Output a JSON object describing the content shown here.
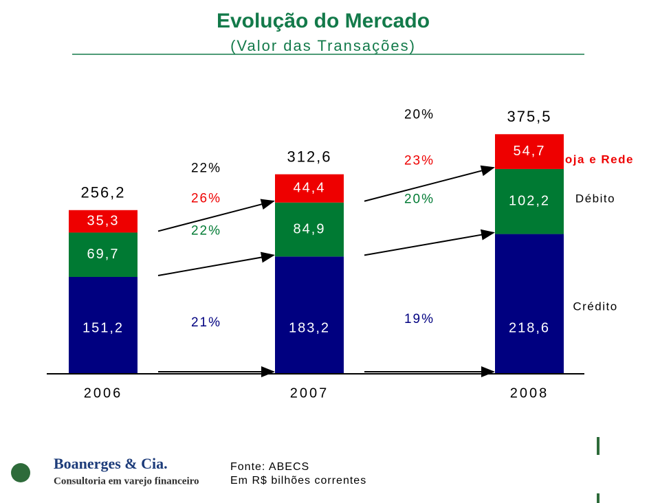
{
  "chart_data": {
    "type": "stacked-bar",
    "title": "Evolução do Mercado",
    "subtitle": "(Valor das Transações)",
    "categories": [
      "2006",
      "2007",
      "2008"
    ],
    "series": [
      {
        "name": "Crédito",
        "color": "#000080",
        "values": [
          151.2,
          183.2,
          218.6
        ],
        "value_labels": [
          "151,2",
          "183,2",
          "218,6"
        ],
        "growth": [
          21,
          19
        ],
        "growth_labels": [
          "21%",
          "19%"
        ]
      },
      {
        "name": "Débito",
        "color": "#007a33",
        "values": [
          69.7,
          84.9,
          102.2
        ],
        "value_labels": [
          "69,7",
          "84,9",
          "102,2"
        ],
        "growth": [
          22,
          20
        ],
        "growth_labels": [
          "22%",
          "20%"
        ]
      },
      {
        "name": "Loja e Rede",
        "color": "#ee0000",
        "values": [
          35.3,
          44.4,
          54.7
        ],
        "value_labels": [
          "35,3",
          "44,4",
          "54,7"
        ],
        "growth": [
          26,
          23
        ],
        "growth_labels": [
          "26%",
          "23%"
        ]
      }
    ],
    "totals": [
      256.2,
      312.6,
      375.5
    ],
    "total_labels": [
      "256,2",
      "312,6",
      "375,5"
    ],
    "total_growth": [
      22,
      20
    ],
    "total_growth_labels": [
      "22%",
      "20%"
    ]
  },
  "footer": {
    "brand": "Boanerges & Cia.",
    "tagline": "Consultoria em varejo financeiro",
    "source": "Fonte: ABECS",
    "note": "Em R$ bilhões correntes"
  }
}
